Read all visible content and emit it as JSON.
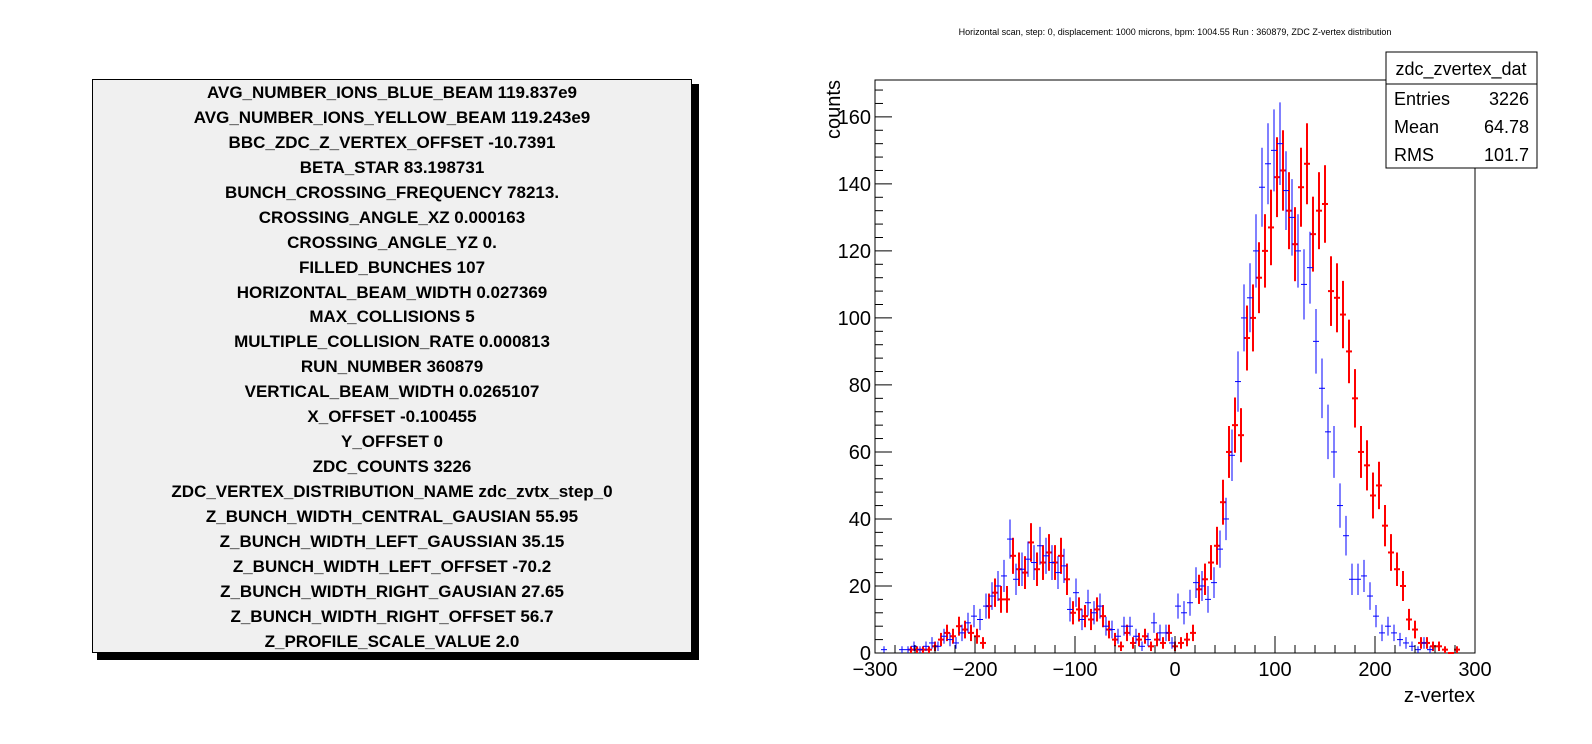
{
  "params_panel": {
    "lines": [
      "AVG_NUMBER_IONS_BLUE_BEAM 119.837e9",
      "AVG_NUMBER_IONS_YELLOW_BEAM 119.243e9",
      "BBC_ZDC_Z_VERTEX_OFFSET -10.7391",
      "BETA_STAR 83.198731",
      "BUNCH_CROSSING_FREQUENCY 78213.",
      "CROSSING_ANGLE_XZ 0.000163",
      "CROSSING_ANGLE_YZ 0.",
      "FILLED_BUNCHES 107",
      "HORIZONTAL_BEAM_WIDTH 0.027369",
      "MAX_COLLISIONS 5",
      "MULTIPLE_COLLISION_RATE 0.000813",
      "RUN_NUMBER 360879",
      "VERTICAL_BEAM_WIDTH 0.0265107",
      "X_OFFSET -0.100455",
      "Y_OFFSET 0",
      "ZDC_COUNTS 3226",
      "ZDC_VERTEX_DISTRIBUTION_NAME zdc_zvtx_step_0",
      "Z_BUNCH_WIDTH_CENTRAL_GAUSIAN 55.95",
      "Z_BUNCH_WIDTH_LEFT_GAUSSIAN 35.15",
      "Z_BUNCH_WIDTH_LEFT_OFFSET -70.2",
      "Z_BUNCH_WIDTH_RIGHT_GAUSIAN 27.65",
      "Z_BUNCH_WIDTH_RIGHT_OFFSET 56.7",
      "Z_PROFILE_SCALE_VALUE 2.0"
    ],
    "background": "#f0f0f0"
  },
  "chart_data": {
    "type": "scatter",
    "title": "Horizontal scan, step: 0, displacement: 1000 microns, bpm: 1004.55 Run : 360879, ZDC Z-vertex distribution",
    "xlabel": "z-vertex",
    "ylabel": "counts",
    "xlim": [
      -300,
      300
    ],
    "ylim": [
      0,
      171
    ],
    "x_ticks": [
      "−300",
      "−200",
      "−100",
      "0",
      "100",
      "200",
      "300"
    ],
    "y_ticks": [
      "0",
      "20",
      "40",
      "60",
      "80",
      "100",
      "120",
      "140",
      "160"
    ],
    "x_tick_values": [
      -300,
      -200,
      -100,
      0,
      100,
      200,
      300
    ],
    "y_tick_values": [
      0,
      20,
      40,
      60,
      80,
      100,
      120,
      140,
      160
    ],
    "grid": false,
    "stats_box": {
      "name": "zdc_zvertex_dat",
      "rows": [
        {
          "label": "Entries",
          "value": "3226"
        },
        {
          "label": "Mean",
          "value": "64.78"
        },
        {
          "label": "RMS",
          "value": "101.7"
        }
      ],
      "position": "top-right"
    },
    "bin_width": 6,
    "series": [
      {
        "color": "#0000ff",
        "x": [
          -291,
          -273,
          -267,
          -261,
          -255,
          -249,
          -243,
          -237,
          -231,
          -225,
          -219,
          -213,
          -207,
          -201,
          -195,
          -189,
          -183,
          -177,
          -171,
          -165,
          -159,
          -153,
          -147,
          -141,
          -135,
          -129,
          -123,
          -117,
          -111,
          -105,
          -99,
          -93,
          -87,
          -81,
          -75,
          -69,
          -63,
          -57,
          -51,
          -45,
          -39,
          -33,
          -27,
          -21,
          -15,
          -9,
          -3,
          3,
          9,
          15,
          21,
          27,
          33,
          39,
          45,
          51,
          57,
          63,
          69,
          75,
          81,
          87,
          93,
          99,
          105,
          111,
          117,
          123,
          129,
          135,
          141,
          147,
          153,
          159,
          165,
          171,
          177,
          183,
          189,
          195,
          201,
          207,
          213,
          219,
          225,
          231,
          237,
          243,
          249,
          255
        ],
        "y": [
          1,
          1,
          1,
          2,
          1,
          2,
          3,
          2,
          5,
          4,
          3,
          6,
          9,
          11,
          10,
          14,
          17,
          20,
          23,
          34,
          22,
          25,
          28,
          27,
          32,
          29,
          27,
          24,
          26,
          13,
          18,
          10,
          15,
          12,
          14,
          8,
          7,
          5,
          8,
          8,
          5,
          2,
          4,
          9,
          6,
          6,
          3,
          14,
          12,
          15,
          21,
          20,
          16,
          21,
          31,
          40,
          59,
          81,
          100,
          106,
          120,
          139,
          146,
          150,
          152,
          138,
          130,
          120,
          110,
          115,
          93,
          79,
          66,
          60,
          44,
          35,
          22,
          22,
          23,
          17,
          11,
          6,
          8,
          6,
          4,
          3,
          2,
          1,
          3,
          1
        ]
      },
      {
        "color": "#ff0000",
        "x": [
          -264,
          -258,
          -252,
          -246,
          -240,
          -234,
          -228,
          -222,
          -216,
          -210,
          -204,
          -198,
          -192,
          -186,
          -180,
          -174,
          -168,
          -162,
          -156,
          -150,
          -144,
          -138,
          -132,
          -126,
          -120,
          -114,
          -108,
          -102,
          -96,
          -90,
          -84,
          -78,
          -72,
          -66,
          -60,
          -54,
          -48,
          -42,
          -36,
          -30,
          -24,
          -18,
          -12,
          -6,
          0,
          6,
          12,
          18,
          24,
          30,
          36,
          42,
          48,
          54,
          60,
          66,
          72,
          78,
          84,
          90,
          96,
          102,
          108,
          114,
          120,
          126,
          132,
          138,
          144,
          150,
          156,
          162,
          168,
          174,
          180,
          186,
          192,
          198,
          204,
          210,
          216,
          222,
          228,
          234,
          240,
          246,
          252,
          258,
          264,
          270,
          276,
          282
        ],
        "y": [
          1,
          1,
          1,
          1,
          2,
          4,
          6,
          5,
          8,
          7,
          6,
          5,
          3,
          14,
          18,
          16,
          16,
          29,
          25,
          24,
          33,
          25,
          27,
          30,
          27,
          29,
          22,
          12,
          13,
          11,
          10,
          13,
          11,
          7,
          4,
          2,
          6,
          3,
          4,
          5,
          2,
          4,
          3,
          6,
          2,
          3,
          4,
          6,
          19,
          22,
          27,
          32,
          45,
          60,
          68,
          65,
          94,
          100,
          112,
          120,
          127,
          142,
          144,
          132,
          122,
          139,
          146,
          125,
          132,
          134,
          108,
          106,
          101,
          90,
          76,
          60,
          56,
          47,
          50,
          38,
          30,
          25,
          20,
          10,
          7,
          3,
          3,
          2,
          2,
          1,
          0,
          1
        ]
      }
    ]
  }
}
